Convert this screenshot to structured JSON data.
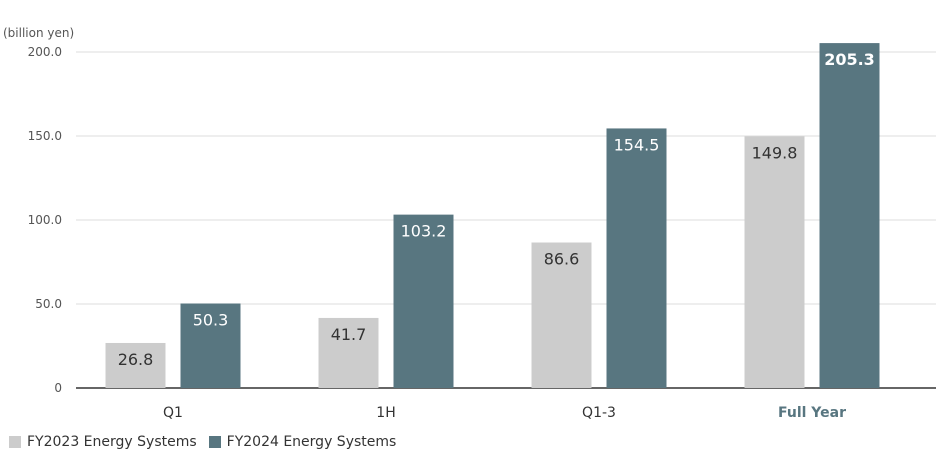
{
  "chart_data": {
    "type": "bar",
    "unit_label": "(billion yen)",
    "categories": [
      "Q1",
      "1H",
      "Q1-3",
      "Full Year"
    ],
    "highlight_category": "Full Year",
    "series": [
      {
        "name": "FY2023 Energy Systems",
        "color": "#cccccc",
        "label_color": "#333333",
        "values": [
          26.8,
          41.7,
          86.6,
          149.8
        ]
      },
      {
        "name": "FY2024 Energy Systems",
        "color": "#587680",
        "label_color": "#ffffff",
        "values": [
          50.3,
          103.2,
          154.5,
          205.3
        ]
      }
    ],
    "y_ticks": [
      "0",
      "50.0",
      "100.0",
      "150.0",
      "200.0"
    ],
    "ylim": [
      0,
      200
    ],
    "grid": true,
    "legend_position": "bottom-left",
    "bold_labels": [
      "205.3"
    ]
  }
}
